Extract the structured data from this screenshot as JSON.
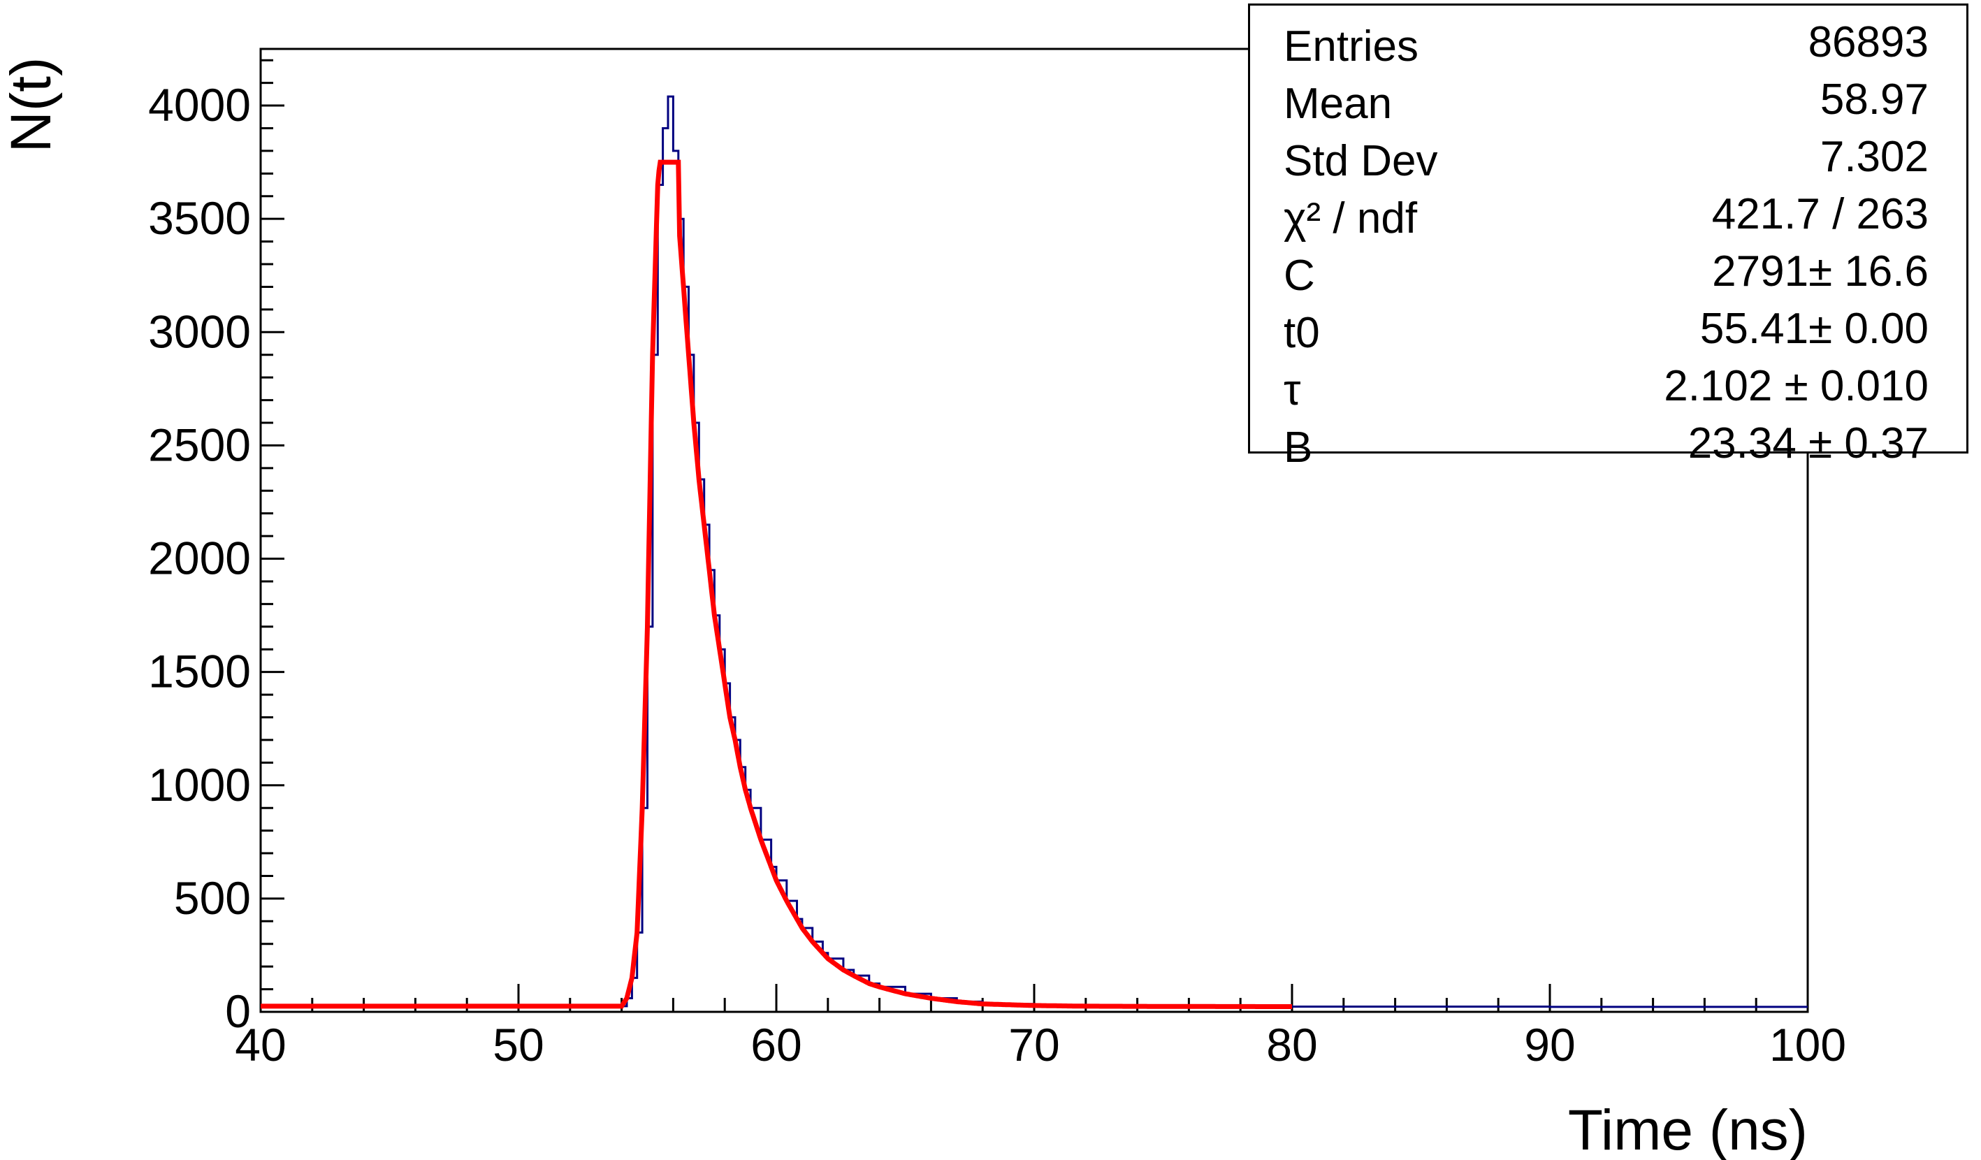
{
  "chart_data": {
    "type": "histogram",
    "title": "",
    "xlabel": "Time (ns)",
    "ylabel": "N(t)",
    "xlim": [
      40,
      100
    ],
    "ylim": [
      0,
      4250
    ],
    "x_ticks": [
      40,
      50,
      60,
      70,
      80,
      90,
      100
    ],
    "y_ticks": [
      0,
      500,
      1000,
      1500,
      2000,
      2500,
      3000,
      3500,
      4000
    ],
    "grid": false,
    "histogram": {
      "color": "#000080",
      "bin_width": 0.2,
      "x": [
        40.0,
        50.0,
        54.0,
        54.2,
        54.4,
        54.6,
        54.8,
        55.0,
        55.2,
        55.4,
        55.6,
        55.8,
        56.0,
        56.2,
        56.4,
        56.6,
        56.8,
        57.0,
        57.2,
        57.4,
        57.6,
        57.8,
        58.0,
        58.2,
        58.4,
        58.6,
        58.8,
        59.0,
        59.4,
        59.8,
        60.0,
        60.4,
        60.8,
        61.0,
        61.4,
        61.8,
        62.0,
        62.6,
        63.0,
        63.6,
        64.0,
        65.0,
        66.0,
        67.0,
        68.0,
        70.0,
        72.0,
        75.0,
        80.0,
        90.0,
        99.8
      ],
      "y": [
        25,
        25,
        25,
        60,
        150,
        350,
        900,
        1700,
        2900,
        3650,
        3900,
        4040,
        3800,
        3500,
        3200,
        2900,
        2600,
        2350,
        2150,
        1950,
        1750,
        1600,
        1450,
        1300,
        1200,
        1080,
        980,
        900,
        760,
        640,
        580,
        490,
        410,
        370,
        310,
        260,
        235,
        185,
        160,
        125,
        110,
        80,
        60,
        45,
        35,
        28,
        25,
        24,
        23,
        22,
        22
      ]
    },
    "fit": {
      "color": "#ff0000",
      "x_range": [
        40,
        80
      ],
      "peak_x": 56,
      "peak_y": 3750
    }
  },
  "stats": {
    "rows": [
      {
        "label": "Entries",
        "value": "86893"
      },
      {
        "label": "Mean",
        "value": "58.97"
      },
      {
        "label": "Std Dev",
        "value": "7.302"
      },
      {
        "label": "χ² / ndf",
        "value": "421.7 / 263"
      },
      {
        "label": "C",
        "value": "2791± 16.6"
      },
      {
        "label": "t0",
        "value": "55.41± 0.00"
      },
      {
        "label": "τ",
        "value": "2.102 ± 0.010"
      },
      {
        "label": "B",
        "value": "23.34 ± 0.37"
      }
    ]
  }
}
